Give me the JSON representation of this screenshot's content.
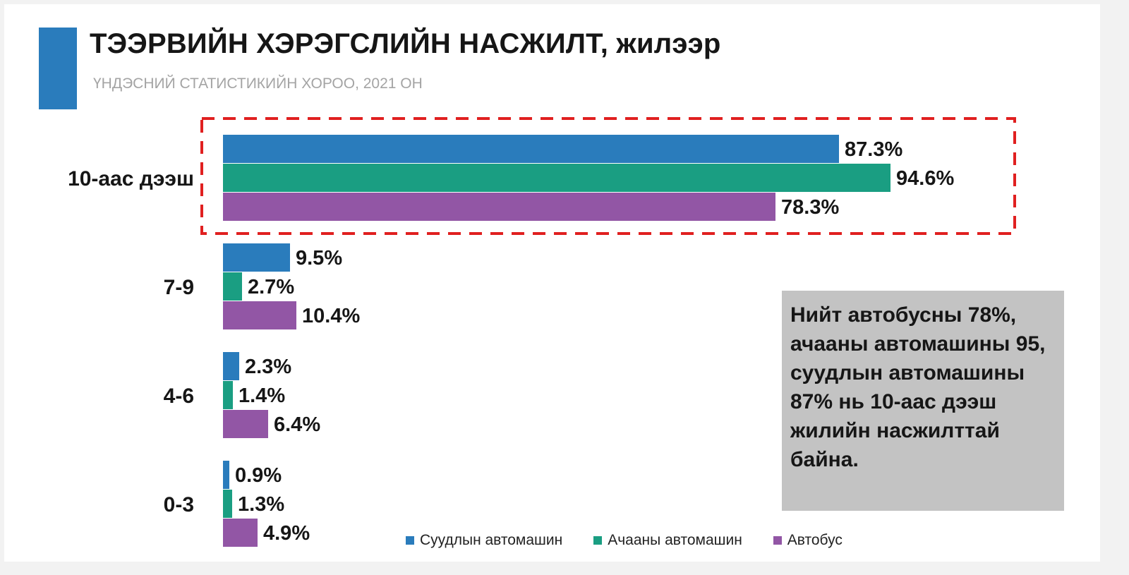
{
  "title": "ТЭЭРВИЙН ХЭРЭГСЛИЙН НАСЖИЛТ, жилээр",
  "subtitle": "ҮНДЭСНИЙ СТАТИСТИКИЙН ХОРОО, 2021 ОН",
  "note": "Нийт автобусны 78%, ачааны автомашины 95, суудлын автомашины 87% нь 10-аас дээш жилийн насжилттай байна.",
  "chart_data": {
    "type": "bar",
    "orientation": "horizontal",
    "categories": [
      "10-аас дээш",
      "7-9",
      "4-6",
      "0-3"
    ],
    "series": [
      {
        "name": "Суудлын автомашин",
        "color": "#2a7cbc",
        "values": [
          87.3,
          9.5,
          2.3,
          0.9
        ],
        "labels": [
          "87.3%",
          "9.5%",
          "2.3%",
          "0.9%"
        ]
      },
      {
        "name": "Ачааны автомашин",
        "color": "#1a9e82",
        "values": [
          94.6,
          2.7,
          1.4,
          1.3
        ],
        "labels": [
          "94.6%",
          "2.7%",
          "1.4%",
          "1.3%"
        ]
      },
      {
        "name": "Автобус",
        "color": "#9256a5",
        "values": [
          78.3,
          10.4,
          6.4,
          4.9
        ],
        "labels": [
          "78.3%",
          "10.4%",
          "6.4%",
          "4.9%"
        ]
      }
    ],
    "xlim": [
      0,
      100
    ],
    "highlight_category": "10-аас дээш",
    "highlight_color": "#e02020",
    "legend_position": "bottom"
  }
}
